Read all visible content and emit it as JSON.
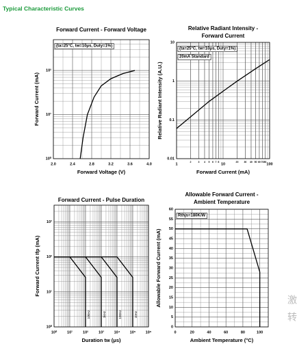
{
  "header": "Typical Characteristic Curves",
  "watermark": [
    "激",
    "转"
  ],
  "chart_data": [
    {
      "type": "line",
      "title": [
        "Forward Current - Forward Voltage"
      ],
      "xlabel": "Forward Voltage (V)",
      "ylabel": "Forward Current (mA)",
      "annotations": [
        "(ta=25°C, tw=10μs, Duty=1%)"
      ],
      "xlim": [
        2.0,
        4.0
      ],
      "xticks": [
        {
          "value": 2.0,
          "label": "2.0"
        },
        2.4,
        2.8,
        3.2,
        3.6,
        {
          "value": 4.0,
          "label": "4.0"
        }
      ],
      "ylim": [
        1,
        500
      ],
      "ylog": true,
      "yticks": [
        {
          "value": 1,
          "label": "10⁰"
        },
        {
          "value": 10,
          "label": "10¹"
        },
        {
          "value": 100,
          "label": "10²"
        }
      ],
      "grid": true,
      "minor_grid": true,
      "series": [
        {
          "color": "#000000",
          "x": [
            2.56,
            2.62,
            2.71,
            2.85,
            3.0,
            3.2,
            3.45,
            3.7
          ],
          "values": [
            1,
            3,
            10,
            25,
            45,
            65,
            85,
            100
          ]
        }
      ]
    },
    {
      "type": "line",
      "title": [
        "Relative Radiant Intensity -",
        "Forward Current"
      ],
      "xlabel": "Forward Current (mA)",
      "ylabel": "Relative Radiant Intensity (A.U.)",
      "annotations": [
        "(ta=25°C, tw=10μs, Duty=1%)",
        "20mA Standard"
      ],
      "xlim": [
        1,
        100
      ],
      "xlog": true,
      "xticks": [
        1,
        2,
        3,
        4,
        5,
        6,
        7,
        8,
        10,
        20,
        30,
        40,
        50,
        60,
        70,
        80,
        100
      ],
      "ylim": [
        0.01,
        10
      ],
      "ylog": true,
      "yticks": [
        0.01,
        0.1,
        1,
        10
      ],
      "grid": true,
      "minor_grid": true,
      "series": [
        {
          "color": "#000000",
          "x": [
            1,
            2,
            5,
            10,
            20,
            50,
            100
          ],
          "values": [
            0.06,
            0.12,
            0.3,
            0.55,
            1,
            2.1,
            3.6
          ]
        }
      ]
    },
    {
      "type": "line",
      "title": [
        "Forward Current - Pulse Duration"
      ],
      "xlabel": "Duration tw (μs)",
      "ylabel": "Forward Current Ifp (mA)",
      "xlim": [
        1,
        1000000
      ],
      "xlog": true,
      "xticks": [
        {
          "value": 1,
          "label": "10⁰"
        },
        {
          "value": 10,
          "label": "10¹"
        },
        {
          "value": 100,
          "label": "10²"
        },
        {
          "value": 1000,
          "label": "10³"
        },
        {
          "value": 10000,
          "label": "10⁴"
        },
        {
          "value": 100000,
          "label": "10⁵"
        },
        {
          "value": 1000000,
          "label": "10⁶"
        }
      ],
      "ylim": [
        1,
        3000
      ],
      "ylog": true,
      "yticks": [
        {
          "value": 1,
          "label": "10⁰"
        },
        {
          "value": 10,
          "label": "10¹"
        },
        {
          "value": 100,
          "label": "10²"
        },
        {
          "value": 1000,
          "label": "10³"
        }
      ],
      "grid": true,
      "minor_grid": true,
      "series": [
        {
          "name": "10kHz",
          "color": "#000000",
          "x": [
            1,
            10,
            100,
            100
          ],
          "values": [
            100,
            100,
            26,
            1
          ]
        },
        {
          "name": "1kHz",
          "color": "#000000",
          "x": [
            1,
            100,
            1000,
            1000
          ],
          "values": [
            100,
            100,
            26,
            1
          ]
        },
        {
          "name": "100Hz",
          "color": "#000000",
          "x": [
            1,
            1000,
            10000,
            10000
          ],
          "values": [
            100,
            100,
            26,
            1
          ]
        },
        {
          "name": "10Hz",
          "color": "#000000",
          "x": [
            1,
            10000,
            100000,
            100000
          ],
          "values": [
            100,
            100,
            26,
            1
          ]
        }
      ]
    },
    {
      "type": "line",
      "title": [
        "Allowable Forward Current -",
        "Ambient Temperature"
      ],
      "xlabel": "Ambient Temperature (°C)",
      "ylabel": "Allowable Forward Current (mA)",
      "annotations": [
        "Rthjs=180K/W"
      ],
      "xlim": [
        0,
        110
      ],
      "xticks": [
        0,
        20,
        40,
        60,
        80,
        100
      ],
      "ylim": [
        0,
        60
      ],
      "yticks": [
        0,
        5,
        10,
        15,
        20,
        25,
        30,
        35,
        40,
        45,
        50,
        55,
        60
      ],
      "grid": true,
      "minor_grid": true,
      "series": [
        {
          "color": "#000000",
          "x": [
            0,
            85,
            100,
            100
          ],
          "values": [
            50,
            50,
            28,
            0
          ]
        }
      ]
    }
  ]
}
